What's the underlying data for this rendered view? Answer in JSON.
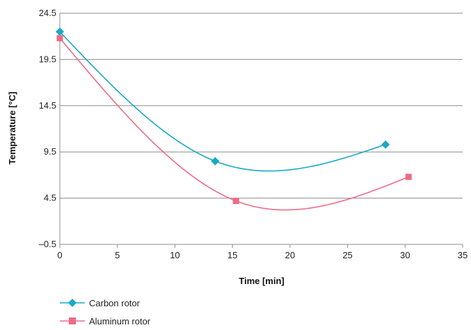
{
  "chart_data": {
    "type": "line",
    "xlabel": "Time [min]",
    "ylabel": "Temperature [°C]",
    "xlim": [
      0,
      35
    ],
    "ylim": [
      -0.5,
      24.5
    ],
    "xticks": [
      0,
      5,
      10,
      15,
      20,
      25,
      30,
      35
    ],
    "yticks": [
      -0.5,
      4.5,
      9.5,
      14.5,
      19.5,
      24.5
    ],
    "ytick_labels": [
      "–0.5",
      "4.5",
      "9.5",
      "14.5",
      "19.5",
      "24.5"
    ],
    "grid": "horizontal",
    "legend_position": "bottom-left",
    "smooth": true,
    "series": [
      {
        "name": "Carbon rotor",
        "marker": "diamond",
        "color": "#1aa8c8",
        "x": [
          0,
          13.5,
          28.3
        ],
        "y": [
          22.5,
          8.5,
          10.3
        ]
      },
      {
        "name": "Aluminum rotor",
        "marker": "square",
        "color": "#ee6b86",
        "x": [
          0,
          15.3,
          30.3
        ],
        "y": [
          21.8,
          4.2,
          6.8
        ]
      }
    ]
  }
}
